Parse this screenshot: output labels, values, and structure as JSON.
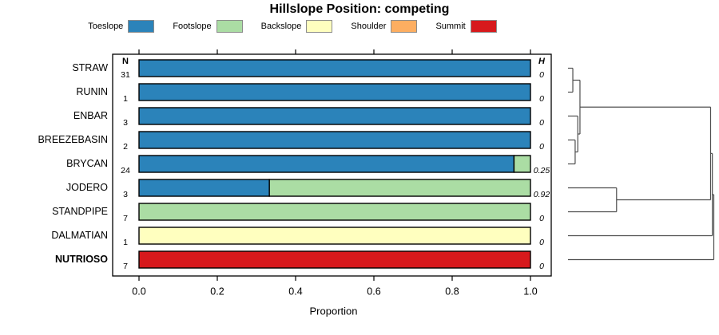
{
  "title": "Hillslope Position: competing",
  "chart_data": {
    "type": "bar",
    "stacked": true,
    "orientation": "horizontal",
    "title": "Hillslope Position: competing",
    "xlabel": "Proportion",
    "xlim": [
      0.0,
      1.0
    ],
    "x_ticks": [
      0.0,
      0.2,
      0.4,
      0.6,
      0.8,
      1.0
    ],
    "x_tick_labels": [
      "0.0",
      "0.2",
      "0.4",
      "0.6",
      "0.8",
      "1.0"
    ],
    "grid": false,
    "legend_position": "top",
    "n_column_header": "N",
    "h_column_header": "H",
    "categories": [
      "STRAW",
      "RUNIN",
      "ENBAR",
      "BREEZEBASIN",
      "BRYCAN",
      "JODERO",
      "STANDPIPE",
      "DALMATIAN",
      "NUTRIOSO"
    ],
    "emphasized_category": "NUTRIOSO",
    "n_obs": [
      31,
      1,
      3,
      2,
      24,
      3,
      7,
      1,
      7
    ],
    "shannon_entropy": [
      "0",
      "0",
      "0",
      "0",
      "0.25",
      "0.92",
      "0",
      "0",
      "0"
    ],
    "series": [
      {
        "name": "Toeslope",
        "color": "#2B83BA",
        "values": [
          1,
          1,
          1,
          1,
          0.958,
          0.333,
          0,
          0,
          0
        ]
      },
      {
        "name": "Footslope",
        "color": "#ABDDA4",
        "values": [
          0,
          0,
          0,
          0,
          0.042,
          0.667,
          1,
          0,
          0
        ]
      },
      {
        "name": "Backslope",
        "color": "#FFFFBF",
        "values": [
          0,
          0,
          0,
          0,
          0,
          0,
          0,
          1,
          0
        ]
      },
      {
        "name": "Shoulder",
        "color": "#FDAE61",
        "values": [
          0,
          0,
          0,
          0,
          0,
          0,
          0,
          0,
          0
        ]
      },
      {
        "name": "Summit",
        "color": "#D7191C",
        "values": [
          0,
          0,
          0,
          0,
          0,
          0,
          0,
          0,
          1
        ]
      }
    ],
    "dendrogram": {
      "leaves": [
        "STRAW",
        "RUNIN",
        "ENBAR",
        "BREEZEBASIN",
        "BRYCAN",
        "JODERO",
        "STANDPIPE",
        "DALMATIAN",
        "NUTRIOSO"
      ],
      "merges": [
        {
          "a": "STRAW",
          "b": "RUNIN",
          "h": 0.033
        },
        {
          "a": "BREEZEBASIN",
          "b": "BRYCAN",
          "h": 0.049
        },
        {
          "a": "ENBAR",
          "b": "@1",
          "h": 0.067
        },
        {
          "a": "@0",
          "b": "@2",
          "h": 0.082
        },
        {
          "a": "JODERO",
          "b": "STANDPIPE",
          "h": 0.333
        },
        {
          "a": "@3",
          "b": "@4",
          "h": 0.978
        },
        {
          "a": "@5",
          "b": "DALMATIAN",
          "h": 0.99
        },
        {
          "a": "@6",
          "b": "NUTRIOSO",
          "h": 1.0
        }
      ]
    },
    "colors": {
      "bar_stroke": "#000000",
      "panel_border": "#000000",
      "dendrogram_line": "#4d4d4d",
      "legend_swatch_border": "#8c8c8c"
    }
  }
}
